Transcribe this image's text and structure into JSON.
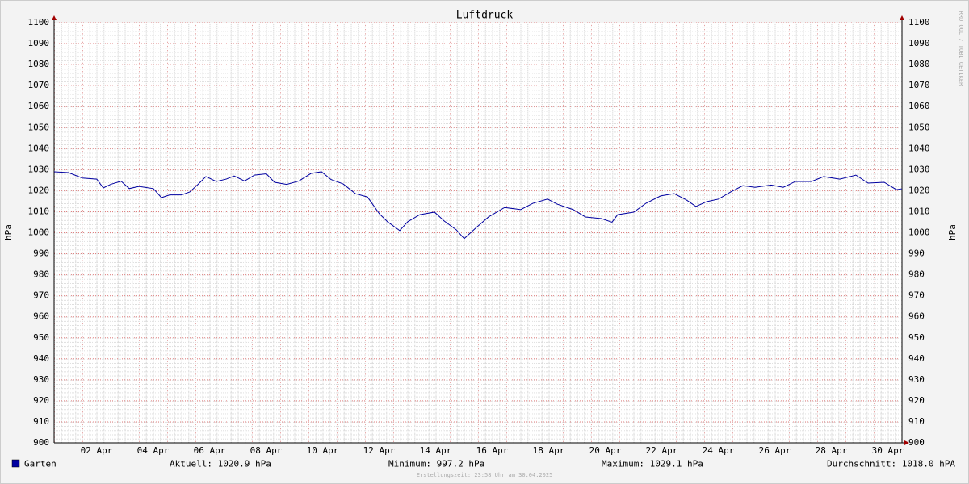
{
  "chart_data": {
    "type": "line",
    "title": "Luftdruck",
    "ylabel": "hPa",
    "side_text": "RRDTOOL / TOBI OETIKER",
    "footer": "Erstellungszeit: 23:58 Uhr am 30.04.2025",
    "legend_stats": [
      "Aktuell: 1020.9 hPa",
      "Minimum: 997.2 hPa",
      "Maximum: 1029.1 hPa",
      "Durchschnitt: 1018.0 hPA"
    ],
    "x": [
      1.0,
      1.51,
      2.0,
      2.51,
      2.74,
      3.0,
      3.37,
      3.66,
      4.0,
      4.51,
      4.8,
      5.09,
      5.51,
      5.8,
      6.09,
      6.37,
      6.74,
      7.09,
      7.37,
      7.74,
      8.09,
      8.51,
      8.8,
      9.23,
      9.66,
      10.09,
      10.46,
      10.8,
      11.23,
      11.66,
      12.09,
      12.51,
      12.8,
      13.23,
      13.51,
      13.94,
      14.46,
      14.8,
      15.23,
      15.51,
      15.94,
      16.37,
      16.94,
      17.51,
      17.94,
      18.46,
      18.8,
      19.37,
      19.8,
      20.37,
      20.74,
      20.94,
      21.51,
      21.94,
      22.46,
      22.94,
      23.37,
      23.71,
      24.09,
      24.51,
      24.94,
      25.37,
      25.8,
      26.37,
      26.8,
      27.23,
      27.8,
      28.23,
      28.8,
      29.37,
      29.8,
      30.37,
      30.8,
      31.0
    ],
    "series": [
      {
        "name": "Garten",
        "color": "#0000a0",
        "values": [
          1029,
          1028.6,
          1026,
          1025.5,
          1021.3,
          1023,
          1024.5,
          1021,
          1022,
          1021,
          1016.7,
          1018,
          1018,
          1019.4,
          1023,
          1026.7,
          1024.4,
          1025.5,
          1027,
          1024.6,
          1027.4,
          1028,
          1024,
          1023,
          1024.6,
          1028.2,
          1029,
          1025.3,
          1023.2,
          1018.6,
          1017,
          1009,
          1005.2,
          1001,
          1005.2,
          1008.6,
          1009.8,
          1005.6,
          1001.4,
          997.2,
          1002.5,
          1007.5,
          1012,
          1011,
          1014,
          1016,
          1013.6,
          1011,
          1007.5,
          1006.7,
          1005,
          1008.6,
          1009.8,
          1014,
          1017.5,
          1018.6,
          1015.6,
          1012.5,
          1014.8,
          1016,
          1019.4,
          1022.4,
          1021.6,
          1022.7,
          1021.6,
          1024.4,
          1024.4,
          1026.7,
          1025.5,
          1027.4,
          1023.6,
          1024,
          1020.5,
          1020.9
        ]
      }
    ],
    "xlim": [
      1,
      31
    ],
    "xticks": [
      {
        "value": 2.5,
        "label": "02 Apr"
      },
      {
        "value": 4.5,
        "label": "04 Apr"
      },
      {
        "value": 6.5,
        "label": "06 Apr"
      },
      {
        "value": 8.5,
        "label": "08 Apr"
      },
      {
        "value": 10.5,
        "label": "10 Apr"
      },
      {
        "value": 12.5,
        "label": "12 Apr"
      },
      {
        "value": 14.5,
        "label": "14 Apr"
      },
      {
        "value": 16.5,
        "label": "16 Apr"
      },
      {
        "value": 18.5,
        "label": "18 Apr"
      },
      {
        "value": 20.5,
        "label": "20 Apr"
      },
      {
        "value": 22.5,
        "label": "22 Apr"
      },
      {
        "value": 24.5,
        "label": "24 Apr"
      },
      {
        "value": 26.5,
        "label": "26 Apr"
      },
      {
        "value": 28.5,
        "label": "28 Apr"
      },
      {
        "value": 30.5,
        "label": "30 Apr"
      }
    ],
    "ylim": [
      900,
      1100
    ],
    "yticks": [
      900,
      910,
      920,
      930,
      940,
      950,
      960,
      970,
      980,
      990,
      1000,
      1010,
      1020,
      1030,
      1040,
      1050,
      1060,
      1070,
      1080,
      1090,
      1100
    ],
    "grid": true
  }
}
